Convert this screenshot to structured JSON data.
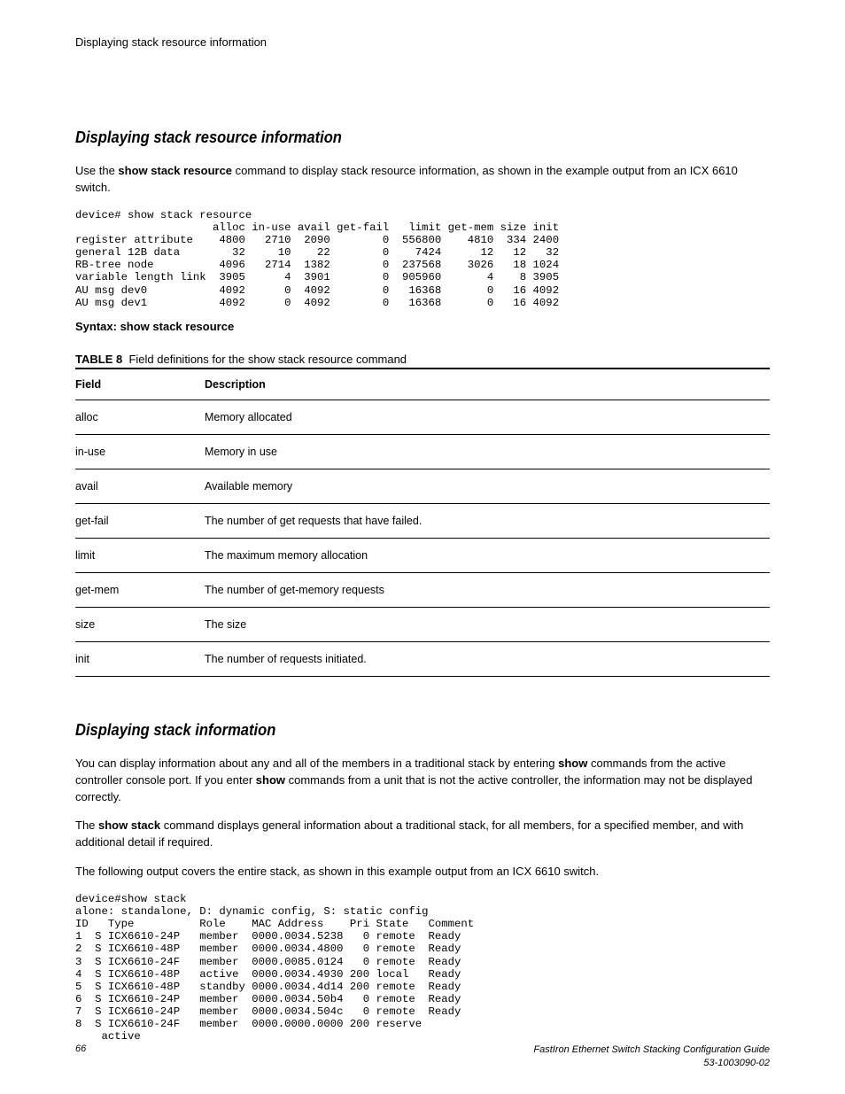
{
  "running_header": "Displaying stack resource information",
  "section1": {
    "heading": "Displaying stack resource information",
    "p1_a": "Use the ",
    "p1_cmd": "show stack resource",
    "p1_b": " command to display stack resource information, as shown in the example output from an ICX 6610 switch.",
    "code": "device# show stack resource\n                     alloc in-use avail get-fail   limit get-mem size init\nregister attribute    4800   2710  2090        0  556800    4810  334 2400\ngeneral 12B data        32     10    22        0    7424      12   12   32\nRB-tree node          4096   2714  1382        0  237568    3026   18 1024\nvariable length link  3905      4  3901        0  905960       4    8 3905\nAU msg dev0           4092      0  4092        0   16368       0   16 4092\nAU msg dev1           4092      0  4092        0   16368       0   16 4092",
    "syntax": "Syntax: show stack resource",
    "table_caption_bold": "TABLE 8",
    "table_caption_rest": "Field definitions for the show stack resource command",
    "table": {
      "headers": [
        "Field",
        "Description"
      ],
      "rows": [
        [
          "alloc",
          "Memory allocated"
        ],
        [
          "in-use",
          "Memory in use"
        ],
        [
          "avail",
          "Available memory"
        ],
        [
          "get-fail",
          "The number of get requests that have failed."
        ],
        [
          "limit",
          "The maximum memory allocation"
        ],
        [
          "get-mem",
          "The number of get-memory requests"
        ],
        [
          "size",
          "The size"
        ],
        [
          "init",
          "The number of requests initiated."
        ]
      ]
    }
  },
  "section2": {
    "heading": "Displaying stack information",
    "p1_a": "You can display information about any and all of the members in a traditional stack by entering ",
    "p1_cmd1": "show",
    "p1_b": " commands from the active controller console port. If you enter ",
    "p1_cmd2": "show",
    "p1_c": " commands from a unit that is not the active controller, the information may not be displayed correctly.",
    "p2_a": "The ",
    "p2_cmd": "show stack",
    "p2_b": " command displays general information about a traditional stack, for all members, for a specified member, and with additional detail if required.",
    "p3": "The following output covers the entire stack, as shown in this example output from an ICX 6610 switch.",
    "code": "device#show stack\nalone: standalone, D: dynamic config, S: static config\nID   Type          Role    MAC Address    Pri State   Comment\n1  S ICX6610-24P   member  0000.0034.5238   0 remote  Ready\n2  S ICX6610-48P   member  0000.0034.4800   0 remote  Ready\n3  S ICX6610-24F   member  0000.0085.0124   0 remote  Ready\n4  S ICX6610-48P   active  0000.0034.4930 200 local   Ready\n5  S ICX6610-48P   standby 0000.0034.4d14 200 remote  Ready\n6  S ICX6610-24P   member  0000.0034.50b4   0 remote  Ready\n7  S ICX6610-24P   member  0000.0034.504c   0 remote  Ready\n8  S ICX6610-24F   member  0000.0000.0000 200 reserve\n    active"
  },
  "footer": {
    "page_num": "66",
    "line1": "FastIron Ethernet Switch Stacking Configuration Guide",
    "line2": "53-1003090-02"
  }
}
